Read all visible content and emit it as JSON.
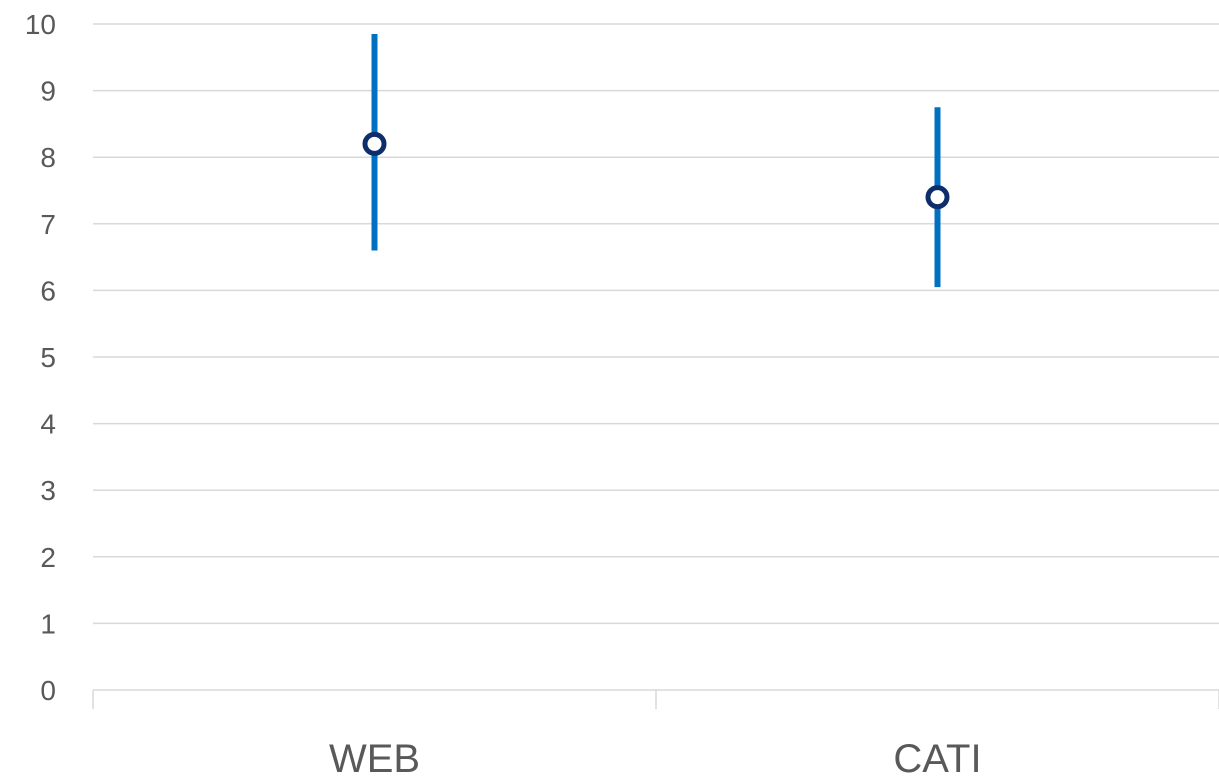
{
  "chart_data": {
    "type": "scatter",
    "categories": [
      "WEB",
      "CATI"
    ],
    "series": [
      {
        "values": [
          8.2,
          7.4
        ],
        "error_low": [
          6.6,
          6.05
        ],
        "error_high": [
          9.85,
          8.75
        ]
      }
    ],
    "ylim": [
      0,
      10
    ],
    "yticks": [
      "0",
      "1",
      "2",
      "3",
      "4",
      "5",
      "6",
      "7",
      "8",
      "9",
      "10"
    ],
    "grid": true,
    "legend": "none",
    "colors": {
      "error_bar": "#0070C0",
      "marker": "#0D2D6B",
      "gridline": "#D9D9D9",
      "text": "#595959"
    }
  }
}
